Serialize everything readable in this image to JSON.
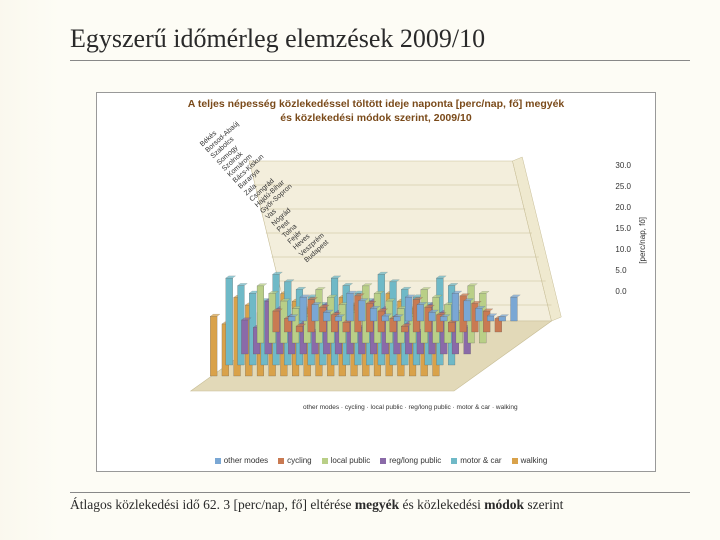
{
  "page": {
    "title": "Egyszerű időmérleg elemzések 2009/10"
  },
  "chart": {
    "type": "bar3d",
    "title_line1": "A teljes népesség közlekedéssel töltött ideje naponta [perc/nap, fő] megyék",
    "title_line2": "és közlekedési módok szerint, 2009/10",
    "y_axis_label": "[perc/nap, fő]",
    "ylim": [
      0,
      30
    ],
    "ytick_step": 5,
    "yticks": [
      "30.0",
      "25.0",
      "20.0",
      "15.0",
      "10.0",
      "5.0",
      "0.0"
    ],
    "categories": [
      "Békés",
      "Borsod-Abaúj",
      "Szabolcs",
      "Somogy",
      "Szolnok",
      "Komárom",
      "Bács-Kiskun",
      "Baranya",
      "Zala",
      "Csongrád",
      "Hajdú-Bihar",
      "Győr-Sopron",
      "Vas",
      "Nógrád",
      "Pest",
      "Tolna",
      "Fejér",
      "Heves",
      "Veszprém",
      "Budapest"
    ],
    "modes": [
      "other modes",
      "cycling",
      "local public",
      "reg/long public",
      "motor & car",
      "walking"
    ],
    "mode_row_text": "other modes · cycling · local public · reg/long public · motor & car · walking",
    "series_colors": {
      "other modes": "#7aa7d4",
      "cycling": "#c97a52",
      "local public": "#b9cf87",
      "reg/long public": "#8a6aa8",
      "motor & car": "#6fb9c7",
      "walking": "#d9a24a"
    },
    "title_color": "#7a4a1a",
    "background_color": "#ffffff",
    "border_color": "#999999",
    "label_fontsize": 7,
    "title_fontsize": 11,
    "floor_color": "#e2d9b8",
    "wall_color": "#f3eedc"
  },
  "legend": {
    "items": [
      "other modes",
      "cycling",
      "local public",
      "reg/long public",
      "motor & car",
      "walking"
    ]
  },
  "caption": {
    "prefix": "Átlagos közlekedési idő ",
    "value": "62. 3",
    "unit": " [perc/nap, fő] eltérése ",
    "bold1": "megyék",
    "mid": " és közlekedési ",
    "bold2": "módok",
    "suffix": " szerint"
  }
}
